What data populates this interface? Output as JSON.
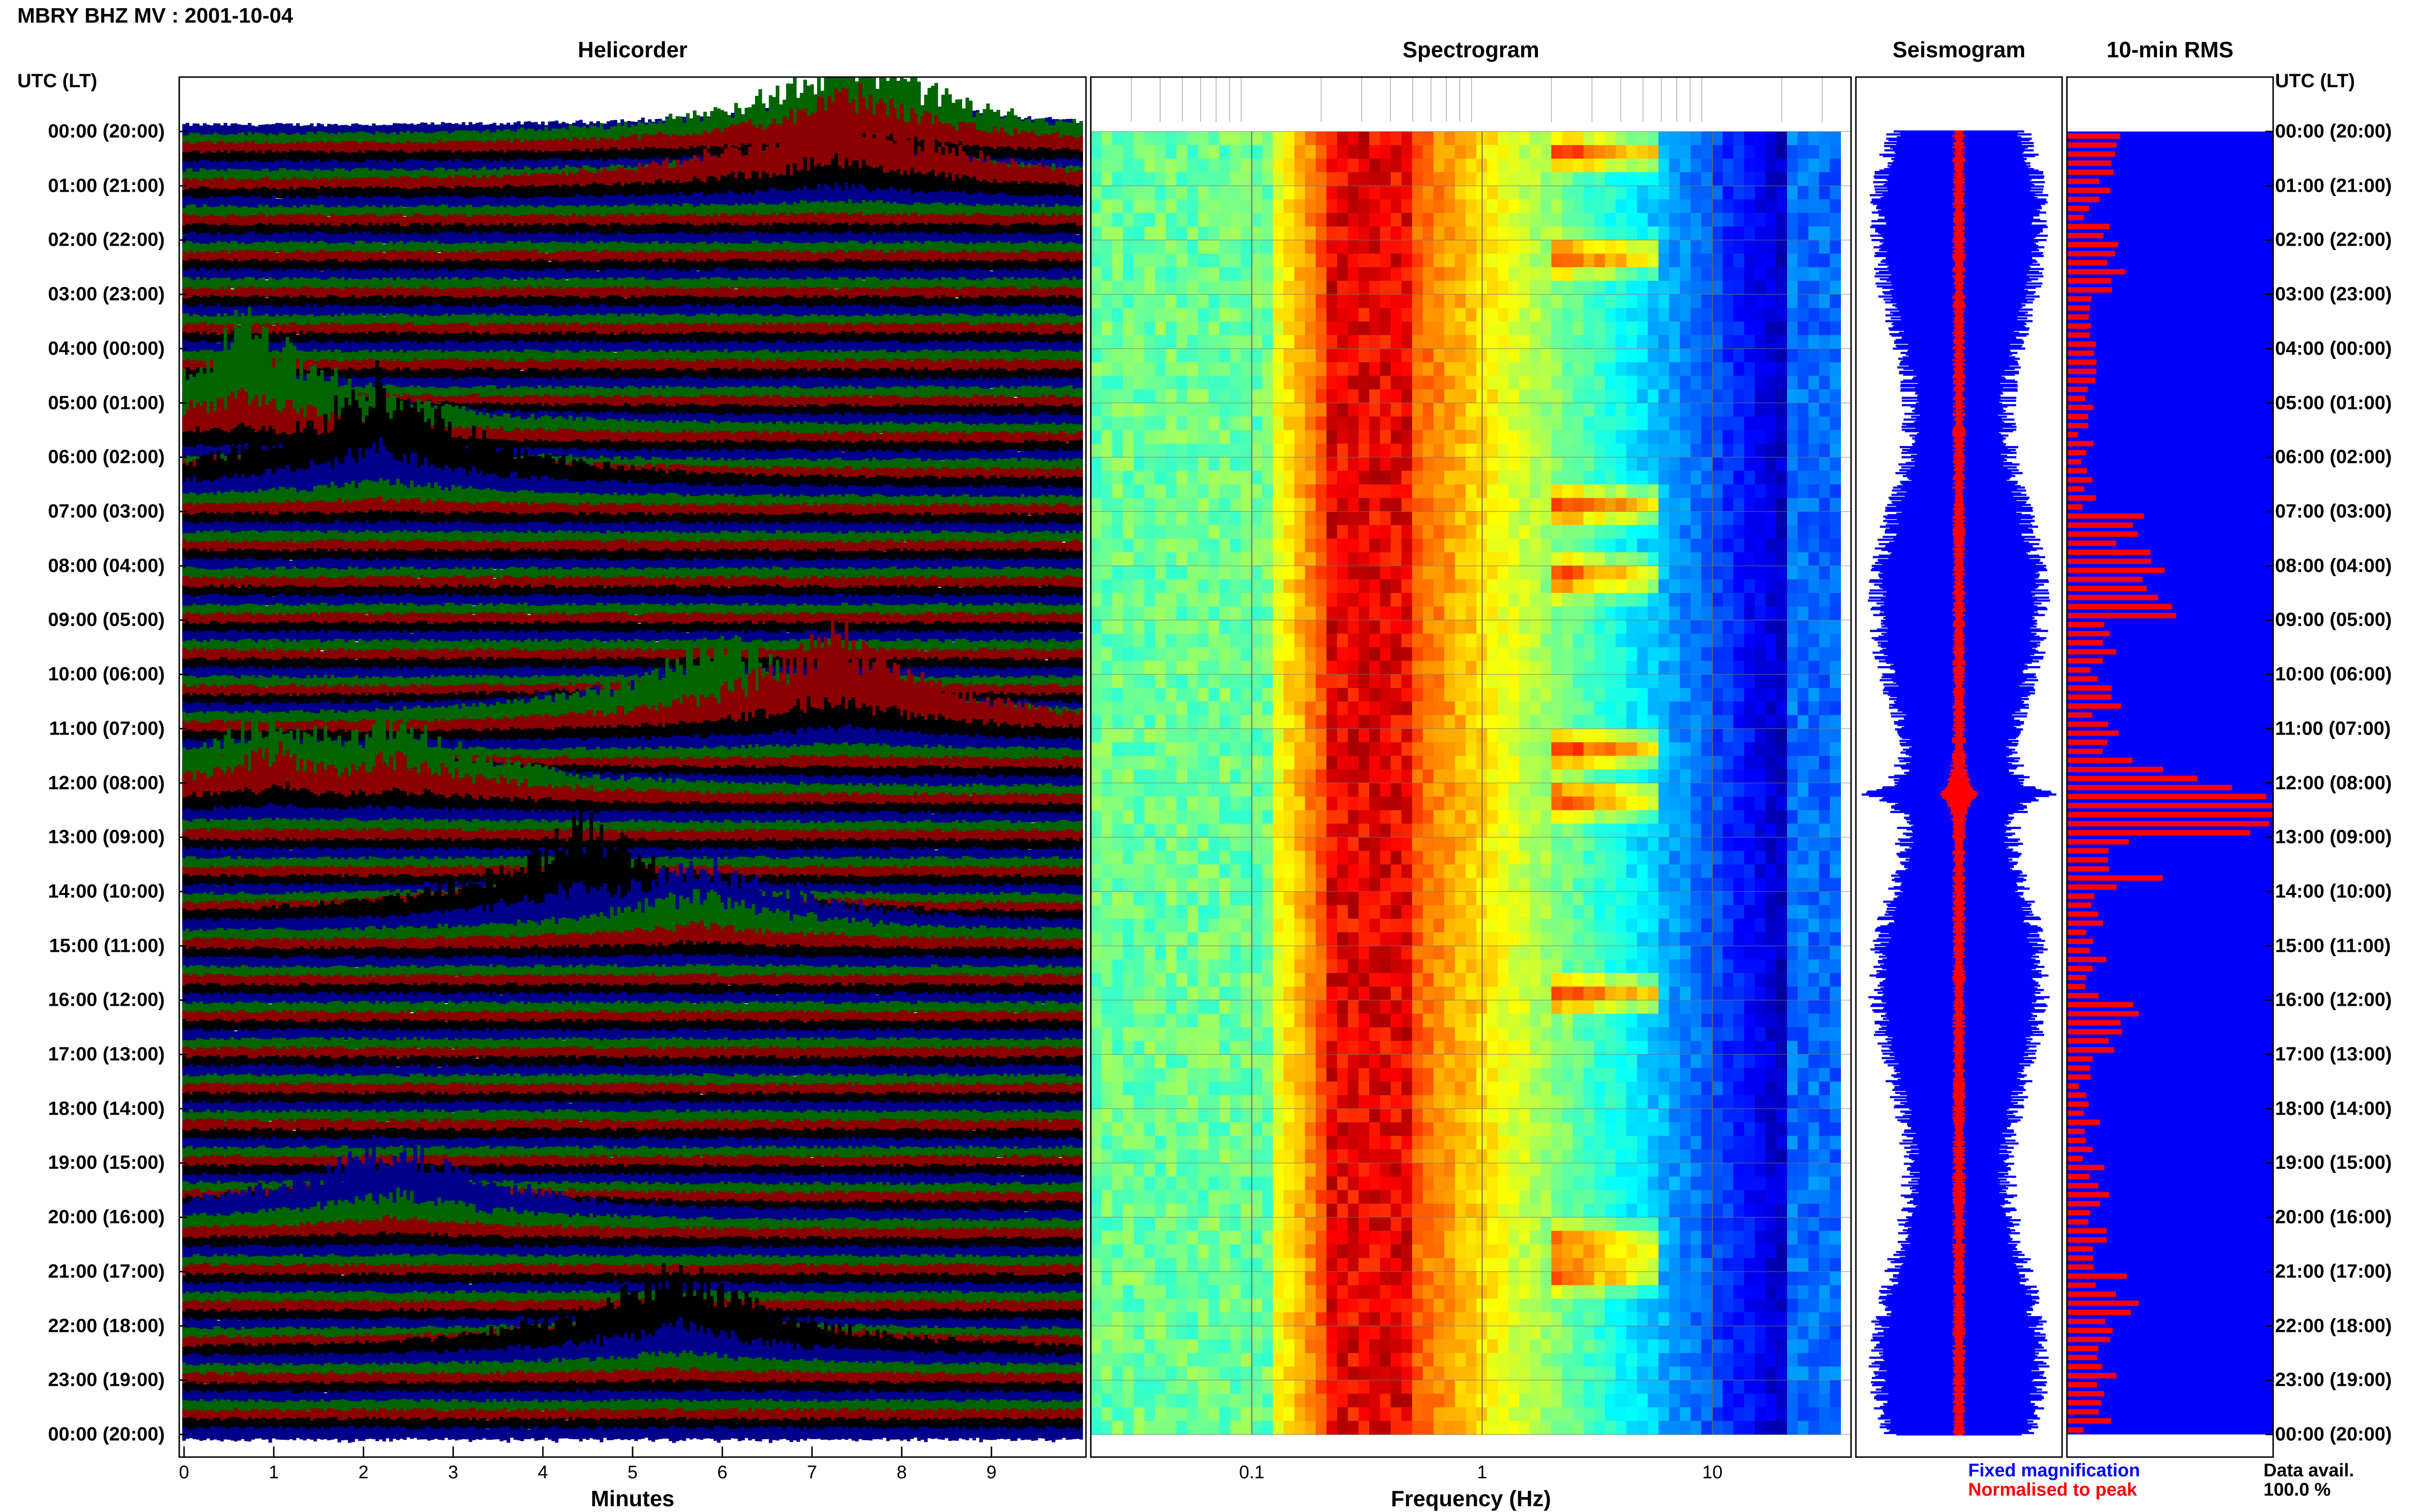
{
  "header": {
    "title": "MBRY BHZ MV : 2001-10-04"
  },
  "panels": {
    "helicorder": "Helicorder",
    "spectrogram": "Spectrogram",
    "seismogram": "Seismogram",
    "rms": "10-min RMS"
  },
  "axis_header": {
    "left": "UTC (LT)",
    "right": "UTC (LT)"
  },
  "time_labels": [
    "00:00 (20:00)",
    "01:00 (21:00)",
    "02:00 (22:00)",
    "03:00 (23:00)",
    "04:00 (00:00)",
    "05:00 (01:00)",
    "06:00 (02:00)",
    "07:00 (03:00)",
    "08:00 (04:00)",
    "09:00 (05:00)",
    "10:00 (06:00)",
    "11:00 (07:00)",
    "12:00 (08:00)",
    "13:00 (09:00)",
    "14:00 (10:00)",
    "15:00 (11:00)",
    "16:00 (12:00)",
    "17:00 (13:00)",
    "18:00 (14:00)",
    "19:00 (15:00)",
    "20:00 (16:00)",
    "21:00 (17:00)",
    "22:00 (18:00)",
    "23:00 (19:00)",
    "00:00 (20:00)"
  ],
  "legend": {
    "fixed": "Fixed magnification",
    "normalised": "Normalised to peak",
    "avail_label": "Data avail.",
    "avail_value": "100.0 %"
  },
  "colors": {
    "helicorder_traces": [
      "#00008b",
      "#006400",
      "#8b0000",
      "#000000"
    ],
    "seismogram_fixed": "#0000ff",
    "seismogram_normalised": "#ff0000",
    "rms_background": "#0000ff",
    "rms_bars": "#ff0000"
  },
  "chart_data": [
    {
      "type": "line",
      "name": "helicorder",
      "xlabel": "Minutes",
      "x_ticks": [
        "0",
        "1",
        "2",
        "3",
        "4",
        "5",
        "6",
        "7",
        "8",
        "9"
      ],
      "xlim": [
        0,
        10
      ],
      "rows_per_hour": 6,
      "hours": 24,
      "event_peaks": [
        {
          "hour": 0.2,
          "minute": 7.5,
          "amp": 1.0
        },
        {
          "hour": 1.0,
          "minute": 7.3,
          "amp": 0.8
        },
        {
          "hour": 5.5,
          "minute": 0.7,
          "amp": 1.0
        },
        {
          "hour": 6.5,
          "minute": 2.2,
          "amp": 1.0
        },
        {
          "hour": 10.8,
          "minute": 6.0,
          "amp": 0.9
        },
        {
          "hour": 11.0,
          "minute": 7.3,
          "amp": 0.9
        },
        {
          "hour": 12.2,
          "minute": 1.0,
          "amp": 0.9
        },
        {
          "hour": 12.2,
          "minute": 2.3,
          "amp": 0.8
        },
        {
          "hour": 14.5,
          "minute": 4.5,
          "amp": 0.9
        },
        {
          "hour": 14.7,
          "minute": 5.7,
          "amp": 0.8
        },
        {
          "hour": 20.0,
          "minute": 2.3,
          "amp": 0.7
        },
        {
          "hour": 22.5,
          "minute": 5.5,
          "amp": 0.8
        }
      ]
    },
    {
      "type": "heatmap",
      "name": "spectrogram",
      "xlabel": "Frequency (Hz)",
      "xscale": "log",
      "x_ticks": [
        "0.1",
        "1",
        "10"
      ],
      "xlim": [
        0.02,
        40
      ],
      "dominant_band_hz": [
        0.2,
        0.5
      ],
      "event_band_hz": [
        2,
        6
      ],
      "event_hours": [
        0.4,
        2.3,
        6.9,
        8.2,
        11.4,
        12.3,
        15.9,
        20.5,
        21.0
      ]
    },
    {
      "type": "line",
      "name": "seismogram",
      "legend": [
        "Fixed magnification",
        "Normalised to peak"
      ],
      "peak_hour": 12.2
    },
    {
      "type": "bar",
      "name": "10-min RMS",
      "orientation": "horizontal",
      "hours": [
        0,
        1,
        2,
        3,
        4,
        5,
        6,
        7,
        8,
        9,
        10,
        11,
        12,
        13,
        14,
        15,
        16,
        17,
        18,
        19,
        20,
        21,
        22,
        23
      ],
      "values": [
        0.25,
        0.18,
        0.3,
        0.14,
        0.12,
        0.11,
        0.14,
        0.35,
        0.5,
        0.2,
        0.22,
        0.32,
        0.9,
        0.42,
        0.15,
        0.16,
        0.3,
        0.12,
        0.14,
        0.18,
        0.2,
        0.3,
        0.22,
        0.18
      ],
      "peak": {
        "hour": 12.2,
        "value": 1.0
      },
      "xlim": [
        0,
        1
      ]
    }
  ]
}
